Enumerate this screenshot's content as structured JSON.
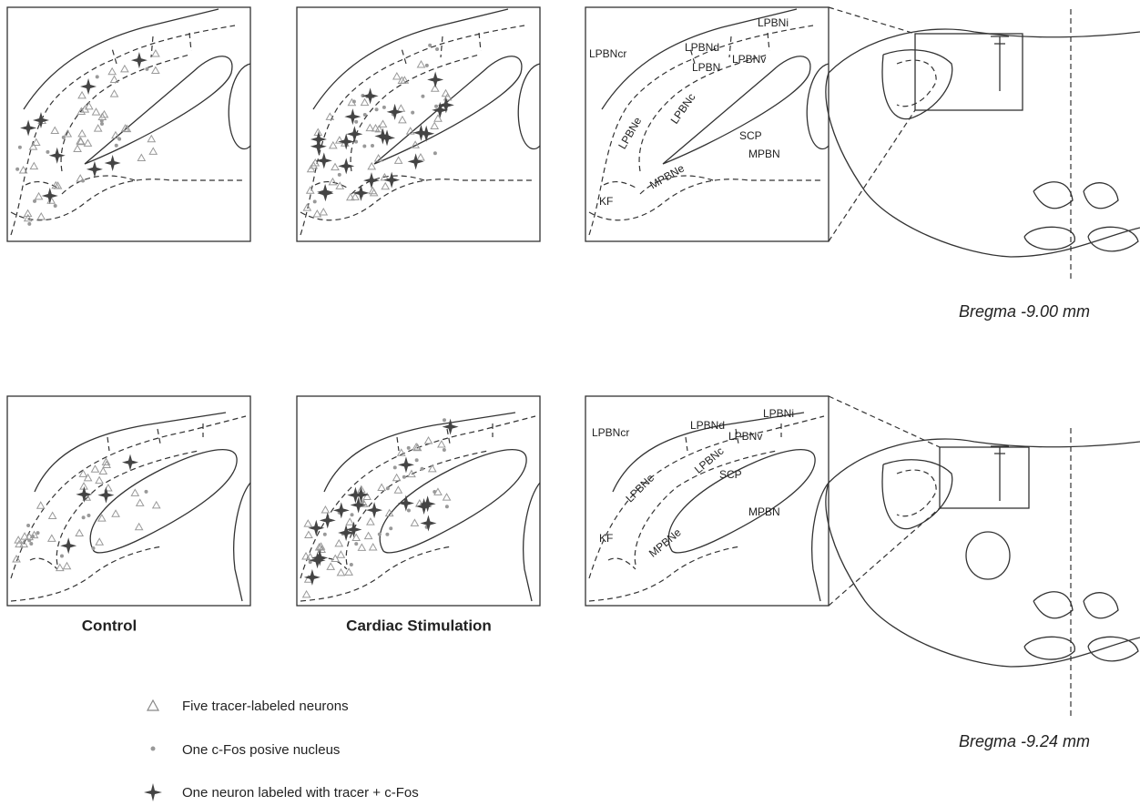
{
  "sections": [
    {
      "bregma": "Bregma -9.00 mm",
      "atlas_labels": [
        "LPBNi",
        "LPBNcr",
        "LPBNd",
        "LPBN",
        "LPBNv",
        "LPBNe",
        "LPBNc",
        "SCP",
        "MPBN",
        "MPBNe",
        "KF"
      ]
    },
    {
      "bregma": "Bregma -9.24 mm",
      "atlas_labels": [
        "LPBNi",
        "LPBNcr",
        "LPBNd",
        "LPBNv",
        "LPBNc",
        "LPBNe",
        "SCP",
        "MPBN",
        "MPBNe",
        "KF"
      ]
    }
  ],
  "conditions": [
    "Control",
    "Cardiac Stimulation"
  ],
  "legend": [
    "Five tracer-labeled neurons",
    "One c-Fos posive nucleus",
    "One neuron labeled with tracer + c-Fos"
  ]
}
